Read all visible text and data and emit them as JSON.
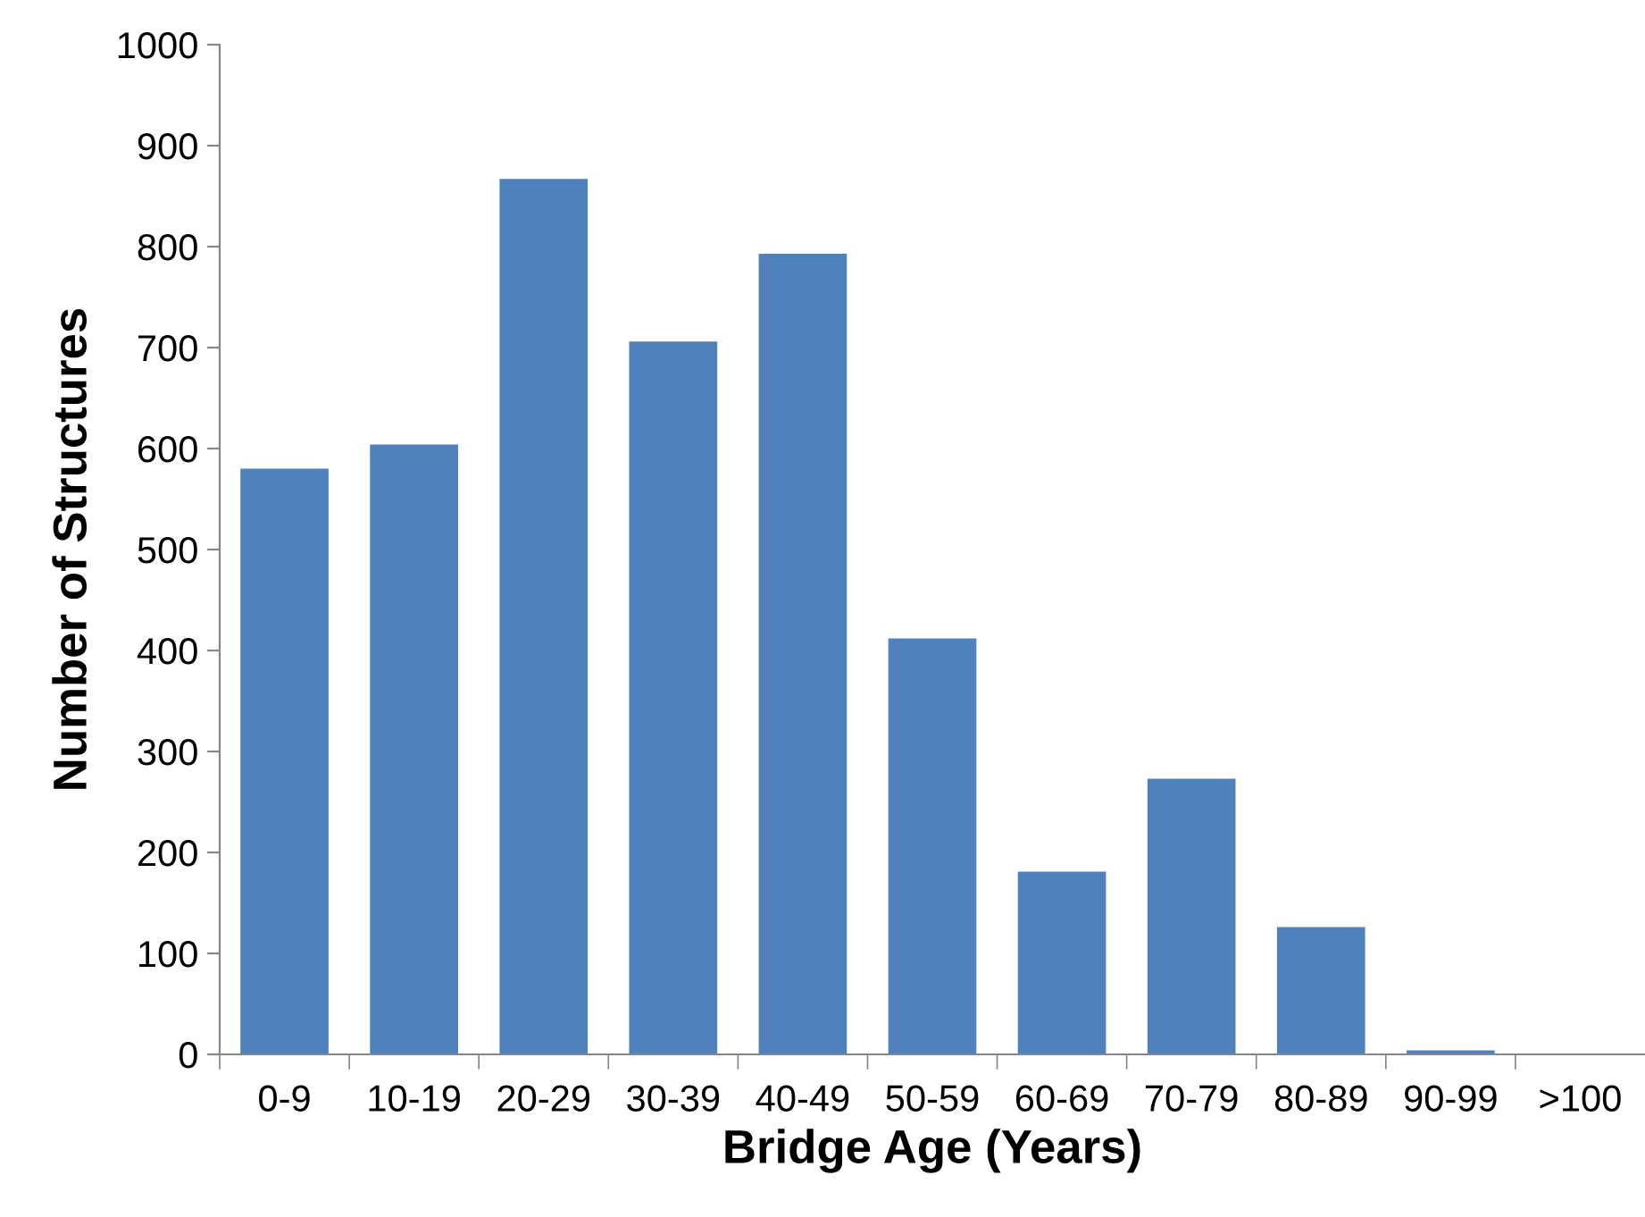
{
  "chart_data": {
    "type": "bar",
    "xlabel": "Bridge Age (Years)",
    "ylabel": "Number of Structures",
    "categories": [
      "0-9",
      "10-19",
      "20-29",
      "30-39",
      "40-49",
      "50-59",
      "60-69",
      "70-79",
      "80-89",
      "90-99",
      ">100"
    ],
    "values": [
      580,
      604,
      867,
      706,
      793,
      412,
      181,
      273,
      126,
      4,
      0
    ],
    "color": "#4f81bd",
    "ylim": [
      0,
      1000
    ],
    "yticks": [
      0,
      100,
      200,
      300,
      400,
      500,
      600,
      700,
      800,
      900,
      1000
    ],
    "grid": false
  }
}
